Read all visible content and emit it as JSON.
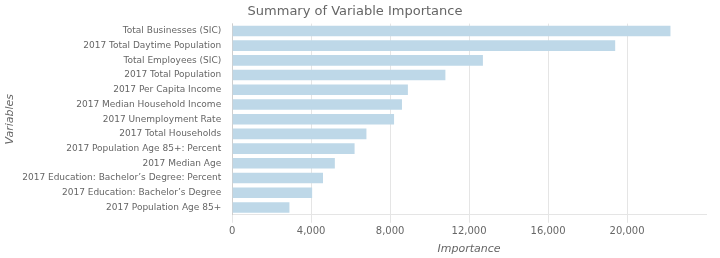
{
  "chart_data": {
    "type": "bar",
    "orientation": "horizontal",
    "title": "Summary of Variable Importance",
    "xlabel": "Importance",
    "ylabel": "Variables",
    "color": "#bed8e8",
    "categories": [
      "2017 Population Age 85+",
      "2017 Education: Bachelor’s Degree",
      "2017 Education: Bachelor’s Degree: Percent",
      "2017 Median Age",
      "2017 Population Age 85+: Percent",
      "2017 Total Households",
      "2017 Unemployment Rate",
      "2017 Median Household Income",
      "2017 Per Capita Income",
      "2017 Total Population",
      "Total Employees (SIC)",
      "2017 Total Daytime Population",
      "Total Businesses (SIC)"
    ],
    "values": [
      2900,
      4050,
      4600,
      5200,
      6200,
      6800,
      8200,
      8600,
      8900,
      10800,
      12700,
      19400,
      22200
    ],
    "xlim": [
      0,
      24000
    ],
    "xticks": [
      0,
      {
        "value": 4000,
        "label": "4,000"
      },
      {
        "value": 8000,
        "label": "8,000"
      },
      {
        "value": 12000,
        "label": "12,000"
      },
      {
        "value": 16000,
        "label": "16,000"
      },
      {
        "value": 20000,
        "label": "20,000"
      }
    ],
    "grid": true
  }
}
